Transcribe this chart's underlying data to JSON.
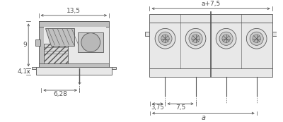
{
  "bg_color": "#ffffff",
  "lc": "#555555",
  "dc": "#555555",
  "fig_width": 4.0,
  "fig_height": 1.73,
  "dpi": 100,
  "dim_13_5": "13,5",
  "dim_9": "9",
  "dim_4_1": "4,1",
  "dim_6_28": "6,28",
  "dim_a_7_5": "a+7,5",
  "dim_3_75": "3,75",
  "dim_7_5": "7,5",
  "dim_a": "a",
  "c_outer": "#d4d4d4",
  "c_mid": "#c0c0c0",
  "c_dark": "#a8a8a8",
  "c_light": "#e8e8e8",
  "c_hatch": "#b8b8b8",
  "c_screw_outer": "#c8c8c8",
  "c_screw_inner": "#b0b0b0"
}
